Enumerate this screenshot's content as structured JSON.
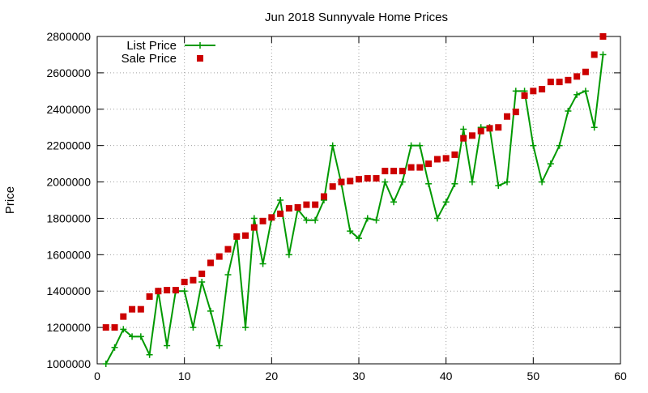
{
  "chart_data": {
    "type": "line",
    "title": "Jun 2018 Sunnyvale Home Prices",
    "xlabel": "",
    "ylabel": "Price",
    "xlim": [
      0,
      60
    ],
    "ylim": [
      1000000,
      2800000
    ],
    "xticks": [
      "0",
      "10",
      "20",
      "30",
      "40",
      "50",
      "60"
    ],
    "yticks": [
      "1000000",
      "1200000",
      "1400000",
      "1600000",
      "1800000",
      "2000000",
      "2200000",
      "2400000",
      "2600000",
      "2800000"
    ],
    "grid": true,
    "legend_position": "top-left",
    "series": [
      {
        "name": "List Price",
        "style": "lines+points",
        "marker": "plus",
        "color": "#009900",
        "x": [
          1,
          2,
          3,
          4,
          5,
          6,
          7,
          8,
          9,
          10,
          11,
          12,
          13,
          14,
          15,
          16,
          17,
          18,
          19,
          20,
          21,
          22,
          23,
          24,
          25,
          26,
          27,
          28,
          29,
          30,
          31,
          32,
          33,
          34,
          35,
          36,
          37,
          38,
          39,
          40,
          41,
          42,
          43,
          44,
          45,
          46,
          47,
          48,
          49,
          50,
          51,
          52,
          53,
          54,
          55,
          56,
          57,
          58
        ],
        "y": [
          1000000,
          1090000,
          1190000,
          1150000,
          1150000,
          1050000,
          1400000,
          1100000,
          1400000,
          1400000,
          1200000,
          1450000,
          1290000,
          1100000,
          1490000,
          1700000,
          1200000,
          1800000,
          1550000,
          1800000,
          1900000,
          1600000,
          1850000,
          1790000,
          1790000,
          1900000,
          2200000,
          1990000,
          1730000,
          1690000,
          1800000,
          1790000,
          2000000,
          1890000,
          2000000,
          2200000,
          2200000,
          1990000,
          1800000,
          1890000,
          1990000,
          2290000,
          2000000,
          2300000,
          2300000,
          1980000,
          2000000,
          2500000,
          2500000,
          2200000,
          2000000,
          2100000,
          2200000,
          2390000,
          2480000,
          2500000,
          2300000,
          2700000
        ]
      },
      {
        "name": "Sale Price",
        "style": "points",
        "marker": "square",
        "color": "#cc0000",
        "x": [
          1,
          2,
          3,
          4,
          5,
          6,
          7,
          8,
          9,
          10,
          11,
          12,
          13,
          14,
          15,
          16,
          17,
          18,
          19,
          20,
          21,
          22,
          23,
          24,
          25,
          26,
          27,
          28,
          29,
          30,
          31,
          32,
          33,
          34,
          35,
          36,
          37,
          38,
          39,
          40,
          41,
          42,
          43,
          44,
          45,
          46,
          47,
          48,
          49,
          50,
          51,
          52,
          53,
          54,
          55,
          56,
          57,
          58
        ],
        "y": [
          1200000,
          1200000,
          1260000,
          1300000,
          1300000,
          1370000,
          1400000,
          1405000,
          1405000,
          1450000,
          1460000,
          1495000,
          1555000,
          1590000,
          1630000,
          1700000,
          1705000,
          1750000,
          1785000,
          1805000,
          1825000,
          1855000,
          1860000,
          1875000,
          1875000,
          1920000,
          1975000,
          2000000,
          2005000,
          2015000,
          2020000,
          2020000,
          2060000,
          2060000,
          2060000,
          2080000,
          2080000,
          2100000,
          2125000,
          2130000,
          2150000,
          2240000,
          2255000,
          2280000,
          2295000,
          2300000,
          2360000,
          2385000,
          2475000,
          2500000,
          2510000,
          2550000,
          2550000,
          2560000,
          2580000,
          2605000,
          2700000,
          2800000
        ]
      }
    ]
  }
}
